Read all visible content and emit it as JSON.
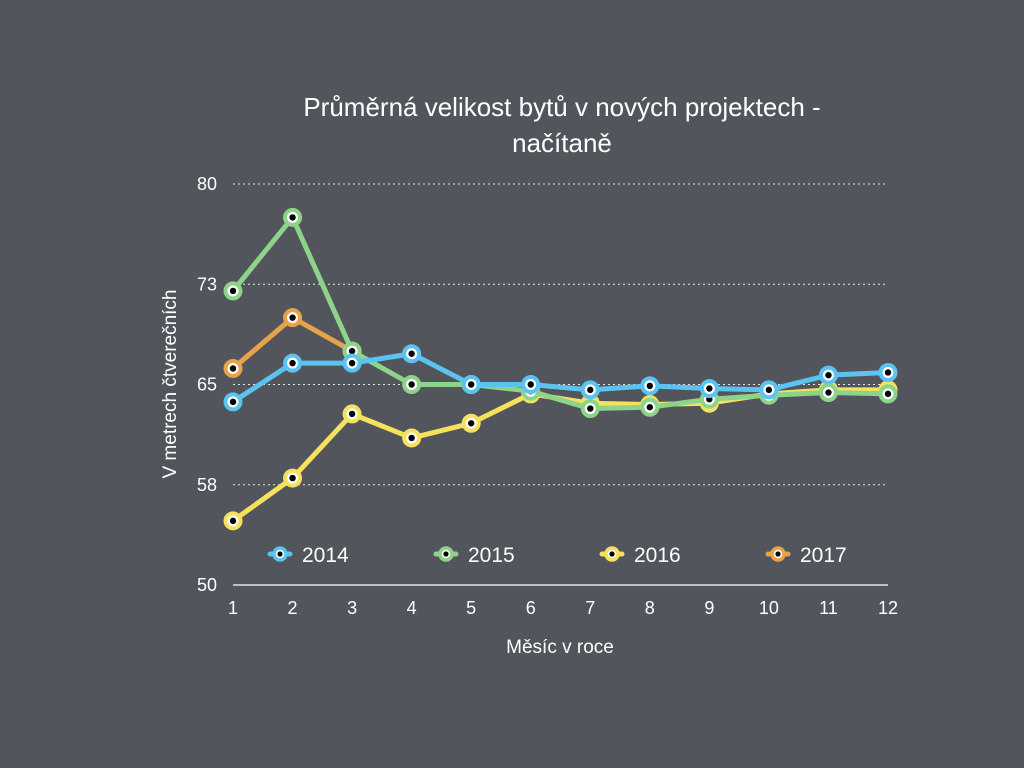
{
  "chart_data": {
    "type": "line",
    "title_lines": [
      "Průměrná velikost bytů v nových projektech -",
      "načítaně"
    ],
    "xlabel": "Měsíc v roce",
    "ylabel": "V metrech čtverečních",
    "x": [
      1,
      2,
      3,
      4,
      5,
      6,
      7,
      8,
      9,
      10,
      11,
      12
    ],
    "x_tick_labels": [
      "1",
      "2",
      "3",
      "4",
      "5",
      "6",
      "7",
      "8",
      "9",
      "10",
      "11",
      "12"
    ],
    "y_tick_labels": [
      "80",
      "73",
      "65",
      "58",
      "50"
    ],
    "y_tick_values": [
      80,
      72.5,
      65,
      57.5,
      50
    ],
    "ylim": [
      50,
      80
    ],
    "grid": true,
    "legend_position": "bottom",
    "series": [
      {
        "name": "2014",
        "color": "#5bc3f0",
        "values": [
          63.7,
          66.6,
          66.6,
          67.3,
          65.0,
          65.0,
          64.6,
          64.9,
          64.7,
          64.6,
          65.7,
          65.9
        ]
      },
      {
        "name": "2015",
        "color": "#8dd38a",
        "values": [
          72.0,
          77.5,
          67.5,
          65.0,
          65.0,
          64.5,
          63.2,
          63.3,
          63.9,
          64.2,
          64.4,
          64.3
        ]
      },
      {
        "name": "2016",
        "color": "#f4e25c",
        "values": [
          54.8,
          58.0,
          62.8,
          61.0,
          62.1,
          64.3,
          63.6,
          63.5,
          63.6,
          64.3,
          64.6,
          64.6
        ]
      },
      {
        "name": "2017",
        "color": "#e8a34a",
        "values": [
          66.2,
          70.0,
          67.5,
          null,
          null,
          null,
          null,
          null,
          null,
          null,
          null,
          null
        ]
      }
    ]
  }
}
